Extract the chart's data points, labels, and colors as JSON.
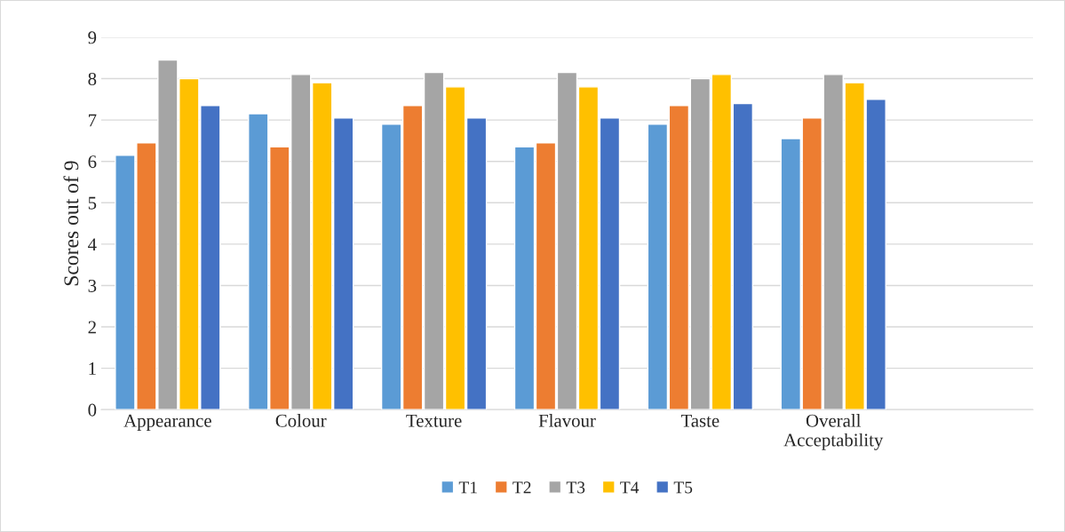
{
  "chart_data": {
    "type": "bar",
    "ylabel": "Scores out of 9",
    "categories": [
      "Appearance",
      "Colour",
      "Texture",
      "Flavour",
      "Taste",
      "Overall\nAcceptability",
      null
    ],
    "series": [
      {
        "name": "T1",
        "color": "#5b9bd5",
        "values": [
          6.15,
          7.15,
          6.9,
          6.35,
          6.9,
          6.55,
          null
        ]
      },
      {
        "name": "T2",
        "color": "#ed7d31",
        "values": [
          6.45,
          6.35,
          7.35,
          6.45,
          7.35,
          7.05,
          null
        ]
      },
      {
        "name": "T3",
        "color": "#a5a5a5",
        "values": [
          8.45,
          8.1,
          8.15,
          8.15,
          8.0,
          8.1,
          null
        ]
      },
      {
        "name": "T4",
        "color": "#ffc000",
        "values": [
          8.0,
          7.9,
          7.8,
          7.8,
          8.1,
          7.9,
          null
        ]
      },
      {
        "name": "T5",
        "color": "#4472c4",
        "values": [
          7.35,
          7.05,
          7.05,
          7.05,
          7.4,
          7.5,
          null
        ]
      }
    ],
    "ylim": [
      0,
      9
    ],
    "yticks": [
      0,
      1,
      2,
      3,
      4,
      5,
      6,
      7,
      8,
      9
    ],
    "grid": "y",
    "legend": "bottom"
  }
}
